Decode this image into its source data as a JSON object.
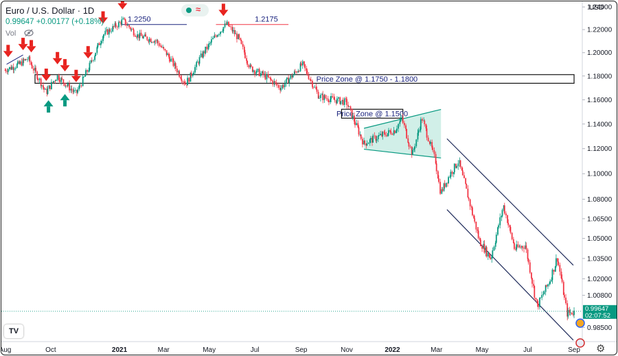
{
  "header": {
    "title": "Euro / U.S. Dollar · 1D",
    "price_line": "0.99647 +0.00177 (+0.18%)",
    "vol_label": "Vol",
    "currency": "USD"
  },
  "toolbar": {
    "logo_text": "TV"
  },
  "chart_data": {
    "type": "line",
    "title": "Euro / U.S. Dollar · 1D",
    "ylim": [
      0.975,
      1.245
    ],
    "y_scale": "log",
    "price_ticks": [
      "1.24000",
      "1.22000",
      "1.20000",
      "1.18000",
      "1.16000",
      "1.14000",
      "1.12000",
      "1.10000",
      "1.08000",
      "1.06500",
      "1.05000",
      "1.03500",
      "1.02000",
      "1.00800",
      "0.98500"
    ],
    "x_ticks": [
      "Aug",
      "Oct",
      "2021",
      "Mar",
      "May",
      "Jul",
      "Sep",
      "Nov",
      "2022",
      "Mar",
      "May",
      "Jul",
      "Sep"
    ],
    "x_ticks_bold": [
      false,
      false,
      true,
      false,
      false,
      false,
      false,
      false,
      true,
      false,
      false,
      false,
      false
    ],
    "current_price": "0.99647",
    "countdown": "02:07:52",
    "series": [
      {
        "x": [
          "2020-08-01",
          "2020-08-20",
          "2020-09-01",
          "2020-09-25",
          "2020-10-10",
          "2020-11-04",
          "2020-11-20",
          "2020-12-10",
          "2021-01-06",
          "2021-01-25",
          "2021-02-20",
          "2021-03-10",
          "2021-03-31",
          "2021-04-20",
          "2021-05-10",
          "2021-05-25",
          "2021-06-10",
          "2021-06-25",
          "2021-07-15",
          "2021-08-05",
          "2021-08-20",
          "2021-09-03",
          "2021-09-25",
          "2021-10-15",
          "2021-11-01",
          "2021-11-24",
          "2021-12-15",
          "2022-01-05",
          "2022-01-14",
          "2022-01-28",
          "2022-02-10",
          "2022-02-28",
          "2022-03-07",
          "2022-03-20",
          "2022-03-31",
          "2022-04-28",
          "2022-05-13",
          "2022-05-30",
          "2022-06-14",
          "2022-06-28",
          "2022-07-14",
          "2022-08-01",
          "2022-08-10",
          "2022-08-23",
          "2022-09-02"
        ],
        "values": [
          1.185,
          1.19,
          1.195,
          1.166,
          1.18,
          1.165,
          1.185,
          1.215,
          1.228,
          1.215,
          1.21,
          1.195,
          1.173,
          1.196,
          1.215,
          1.225,
          1.212,
          1.187,
          1.18,
          1.17,
          1.18,
          1.19,
          1.163,
          1.16,
          1.158,
          1.124,
          1.13,
          1.135,
          1.145,
          1.115,
          1.145,
          1.11,
          1.085,
          1.1,
          1.11,
          1.048,
          1.035,
          1.075,
          1.042,
          1.045,
          1.0,
          1.02,
          1.036,
          0.995,
          0.996
        ]
      }
    ],
    "annotations": [
      {
        "text": "1.2250",
        "level": 1.225
      },
      {
        "text": "1.2175",
        "level": 1.2175
      },
      {
        "text": "Price Zone @ 1.1750 - 1.1800",
        "range": [
          1.175,
          1.18
        ]
      },
      {
        "text": "Price Zone @ 1.1500",
        "range": [
          1.145,
          1.15
        ]
      }
    ],
    "arrows_down": [
      "2020-08-05",
      "2020-08-25",
      "2020-09-05",
      "2020-09-25",
      "2020-10-10",
      "2020-10-20",
      "2020-11-04",
      "2020-11-20",
      "2020-12-10",
      "2021-01-05",
      "2021-05-20"
    ],
    "arrows_up": [
      "2020-09-28",
      "2020-10-20"
    ],
    "colors": {
      "up": "#089981",
      "down": "#f23645",
      "channel": "#1e2a5a",
      "zone_fill": "#c9ece4"
    }
  }
}
